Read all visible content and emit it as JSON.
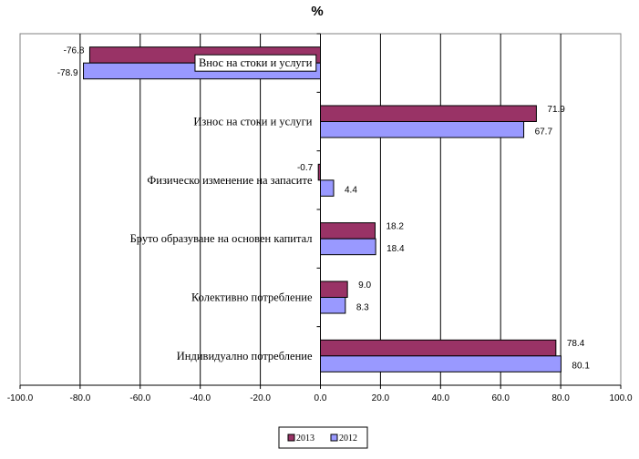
{
  "chart_data": {
    "type": "bar",
    "orientation": "horizontal",
    "title": "%",
    "categories": [
      "Внос на стоки и услуги",
      "Износ на стоки и услуги",
      "Физическо изменение на запасите",
      "Бруто образуване на основен капитал",
      "Колективно потребление",
      "Индивидуално потребление"
    ],
    "series": [
      {
        "name": "2013",
        "color": "#993366",
        "values": [
          -76.8,
          71.9,
          -0.7,
          18.2,
          9.0,
          78.4
        ],
        "labels": [
          "-76.8",
          "71.9",
          "-0.7",
          "18.2",
          "9.0",
          "78.4"
        ]
      },
      {
        "name": "2012",
        "color": "#9999ff",
        "values": [
          -78.9,
          67.7,
          4.4,
          18.4,
          8.3,
          80.1
        ],
        "labels": [
          "-78.9",
          "67.7",
          "4.4",
          "18.4",
          "8.3",
          "80.1"
        ]
      }
    ],
    "xlim": [
      -100,
      100
    ],
    "xticks": [
      -100,
      -80,
      -60,
      -40,
      -20,
      0,
      20,
      40,
      60,
      80,
      100
    ],
    "xtick_labels": [
      "-100.0",
      "-80.0",
      "-60.0",
      "-40.0",
      "-20.0",
      "0.0",
      "20.0",
      "40.0",
      "60.0",
      "80.0",
      "100.0"
    ],
    "xlabel": "",
    "ylabel": "",
    "grid": true,
    "legend_position": "bottom"
  }
}
